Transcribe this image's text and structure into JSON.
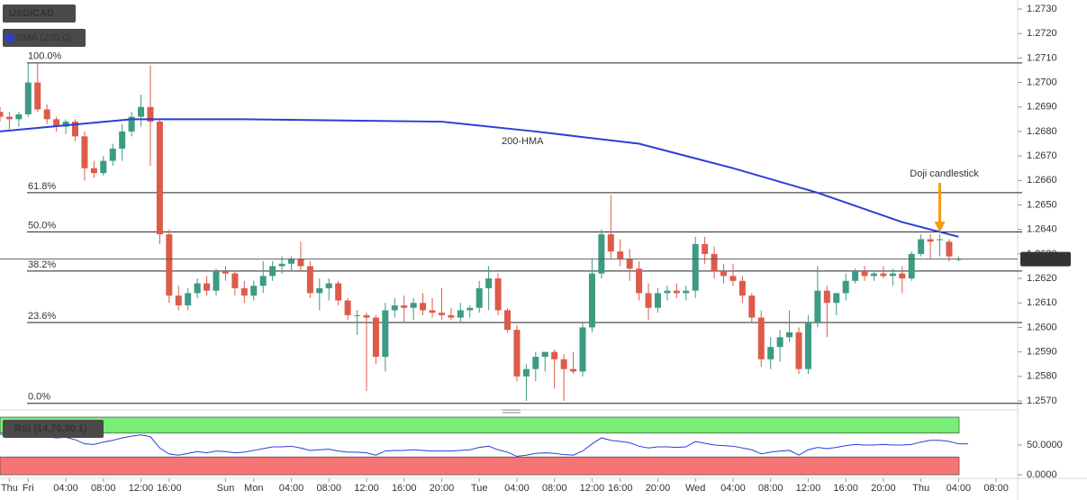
{
  "chart_data": {
    "type": "candlestick",
    "symbol": "USD/CAD",
    "indicator_label": "SMA (200,0)",
    "rsi_label": "RSI (14,70,30,1)",
    "up_color": "#3d9a83",
    "down_color": "#dd5b4a",
    "ylim": [
      1.257,
      1.273
    ],
    "yticks": [
      {
        "value": 1.257,
        "label": "1.2570"
      },
      {
        "value": 1.258,
        "label": "1.2580"
      },
      {
        "value": 1.259,
        "label": "1.2590"
      },
      {
        "value": 1.26,
        "label": "1.2600"
      },
      {
        "value": 1.261,
        "label": "1.2610"
      },
      {
        "value": 1.262,
        "label": "1.2620"
      },
      {
        "value": 1.263,
        "label": "1.2630"
      },
      {
        "value": 1.264,
        "label": "1.2640"
      },
      {
        "value": 1.265,
        "label": "1.2650"
      },
      {
        "value": 1.266,
        "label": "1.2660"
      },
      {
        "value": 1.267,
        "label": "1.2670"
      },
      {
        "value": 1.268,
        "label": "1.2680"
      },
      {
        "value": 1.269,
        "label": "1.2690"
      },
      {
        "value": 1.27,
        "label": "1.2700"
      },
      {
        "value": 1.271,
        "label": "1.2710"
      },
      {
        "value": 1.272,
        "label": "1.2720"
      },
      {
        "value": 1.273,
        "label": "1.2730"
      }
    ],
    "xlim": [
      0,
      108
    ],
    "xticks": [
      {
        "value": 1,
        "label": "Thu"
      },
      {
        "value": 3,
        "label": "Fri"
      },
      {
        "value": 7,
        "label": "04:00"
      },
      {
        "value": 11,
        "label": "08:00"
      },
      {
        "value": 15,
        "label": "12:00"
      },
      {
        "value": 18,
        "label": "16:00"
      },
      {
        "value": 24,
        "label": "Sun"
      },
      {
        "value": 27,
        "label": "Mon"
      },
      {
        "value": 31,
        "label": "04:00"
      },
      {
        "value": 35,
        "label": "08:00"
      },
      {
        "value": 39,
        "label": "12:00"
      },
      {
        "value": 43,
        "label": "16:00"
      },
      {
        "value": 47,
        "label": "20:00"
      },
      {
        "value": 51,
        "label": "Tue"
      },
      {
        "value": 55,
        "label": "04:00"
      },
      {
        "value": 59,
        "label": "08:00"
      },
      {
        "value": 63,
        "label": "12:00"
      },
      {
        "value": 66,
        "label": "16:00"
      },
      {
        "value": 70,
        "label": "20:00"
      },
      {
        "value": 74,
        "label": "Wed"
      },
      {
        "value": 78,
        "label": "04:00"
      },
      {
        "value": 82,
        "label": "08:00"
      },
      {
        "value": 86,
        "label": "12:00"
      },
      {
        "value": 90,
        "label": "16:00"
      },
      {
        "value": 94,
        "label": "20:00"
      },
      {
        "value": 98,
        "label": "Thu"
      },
      {
        "value": 102,
        "label": "04:00"
      },
      {
        "value": 106,
        "label": "08:00"
      }
    ],
    "candles": [
      [
        1.2688,
        1.269,
        1.2684,
        1.2686
      ],
      [
        1.2686,
        1.2688,
        1.2681,
        1.2685
      ],
      [
        1.2685,
        1.2688,
        1.2682,
        1.2687
      ],
      [
        1.2687,
        1.2708,
        1.2686,
        1.27
      ],
      [
        1.27,
        1.2708,
        1.2688,
        1.2689
      ],
      [
        1.2689,
        1.2691,
        1.2683,
        1.2685
      ],
      [
        1.2685,
        1.2686,
        1.268,
        1.2682
      ],
      [
        1.2682,
        1.2685,
        1.2679,
        1.2684
      ],
      [
        1.2684,
        1.2685,
        1.2676,
        1.2678
      ],
      [
        1.2678,
        1.268,
        1.266,
        1.2665
      ],
      [
        1.2665,
        1.2668,
        1.2661,
        1.2663
      ],
      [
        1.2663,
        1.267,
        1.2662,
        1.2668
      ],
      [
        1.2668,
        1.2675,
        1.2666,
        1.2673
      ],
      [
        1.2673,
        1.2683,
        1.2668,
        1.268
      ],
      [
        1.268,
        1.2688,
        1.2678,
        1.2686
      ],
      [
        1.2686,
        1.2695,
        1.2682,
        1.269
      ],
      [
        1.269,
        1.2707,
        1.2666,
        1.2684
      ],
      [
        1.2684,
        1.2685,
        1.2634,
        1.2638
      ],
      [
        1.2638,
        1.264,
        1.261,
        1.2613
      ],
      [
        1.2613,
        1.2617,
        1.2607,
        1.2609
      ],
      [
        1.2609,
        1.2616,
        1.2607,
        1.2614
      ],
      [
        1.2614,
        1.262,
        1.2612,
        1.2618
      ],
      [
        1.2618,
        1.2621,
        1.2613,
        1.2615
      ],
      [
        1.2615,
        1.2624,
        1.2613,
        1.2623
      ],
      [
        1.2623,
        1.2625,
        1.2619,
        1.2622
      ],
      [
        1.2622,
        1.2623,
        1.2613,
        1.2616
      ],
      [
        1.2616,
        1.2619,
        1.261,
        1.2613
      ],
      [
        1.2613,
        1.2619,
        1.2611,
        1.2617
      ],
      [
        1.2617,
        1.2627,
        1.2614,
        1.2621
      ],
      [
        1.2621,
        1.2627,
        1.2619,
        1.2625
      ],
      [
        1.2625,
        1.2629,
        1.2622,
        1.2626
      ],
      [
        1.2626,
        1.2629,
        1.2623,
        1.2628
      ],
      [
        1.2628,
        1.2635,
        1.2623,
        1.2625
      ],
      [
        1.2625,
        1.2627,
        1.2612,
        1.2614
      ],
      [
        1.2614,
        1.262,
        1.2607,
        1.2616
      ],
      [
        1.2616,
        1.262,
        1.2611,
        1.2618
      ],
      [
        1.2618,
        1.2619,
        1.2609,
        1.2611
      ],
      [
        1.2611,
        1.2612,
        1.2603,
        1.2605
      ],
      [
        1.2605,
        1.2607,
        1.2597,
        1.2605
      ],
      [
        1.2605,
        1.2606,
        1.2574,
        1.2604
      ],
      [
        1.2604,
        1.2605,
        1.2585,
        1.2588
      ],
      [
        1.2588,
        1.261,
        1.2582,
        1.2607
      ],
      [
        1.2607,
        1.2612,
        1.2604,
        1.2609
      ],
      [
        1.2609,
        1.2613,
        1.2602,
        1.2608
      ],
      [
        1.2608,
        1.2612,
        1.2603,
        1.261
      ],
      [
        1.261,
        1.2614,
        1.2605,
        1.2607
      ],
      [
        1.2607,
        1.2612,
        1.2604,
        1.2606
      ],
      [
        1.2606,
        1.2616,
        1.2603,
        1.2605
      ],
      [
        1.2605,
        1.2608,
        1.2603,
        1.2604
      ],
      [
        1.2604,
        1.261,
        1.2602,
        1.2607
      ],
      [
        1.2607,
        1.2609,
        1.2604,
        1.2608
      ],
      [
        1.2608,
        1.2619,
        1.2606,
        1.2616
      ],
      [
        1.2616,
        1.2625,
        1.2607,
        1.262
      ],
      [
        1.262,
        1.2622,
        1.2605,
        1.2607
      ],
      [
        1.2607,
        1.2608,
        1.2598,
        1.2599
      ],
      [
        1.2599,
        1.2601,
        1.2578,
        1.258
      ],
      [
        1.258,
        1.2585,
        1.257,
        1.2583
      ],
      [
        1.2583,
        1.259,
        1.2578,
        1.2588
      ],
      [
        1.2588,
        1.259,
        1.2582,
        1.259
      ],
      [
        1.259,
        1.2591,
        1.2575,
        1.2587
      ],
      [
        1.2587,
        1.2589,
        1.257,
        1.2583
      ],
      [
        1.2583,
        1.259,
        1.2581,
        1.2582
      ],
      [
        1.2582,
        1.2602,
        1.258,
        1.26
      ],
      [
        1.26,
        1.2628,
        1.2598,
        1.2622
      ],
      [
        1.2622,
        1.264,
        1.262,
        1.2638
      ],
      [
        1.2638,
        1.2654,
        1.2628,
        1.2631
      ],
      [
        1.2631,
        1.2636,
        1.2625,
        1.2628
      ],
      [
        1.2628,
        1.2632,
        1.2619,
        1.2624
      ],
      [
        1.2624,
        1.2627,
        1.2611,
        1.2614
      ],
      [
        1.2614,
        1.2618,
        1.2603,
        1.2608
      ],
      [
        1.2608,
        1.2616,
        1.2606,
        1.2614
      ],
      [
        1.2614,
        1.2617,
        1.2611,
        1.2615
      ],
      [
        1.2615,
        1.2618,
        1.2612,
        1.2614
      ],
      [
        1.2614,
        1.2617,
        1.2611,
        1.2615
      ],
      [
        1.2615,
        1.2637,
        1.2612,
        1.2634
      ],
      [
        1.2634,
        1.2637,
        1.2626,
        1.263
      ],
      [
        1.263,
        1.2633,
        1.262,
        1.2623
      ],
      [
        1.2623,
        1.2626,
        1.2618,
        1.2621
      ],
      [
        1.2621,
        1.2626,
        1.2617,
        1.2619
      ],
      [
        1.2619,
        1.2621,
        1.261,
        1.2613
      ],
      [
        1.2613,
        1.2614,
        1.2602,
        1.2604
      ],
      [
        1.2604,
        1.2607,
        1.2584,
        1.2587
      ],
      [
        1.2587,
        1.2596,
        1.2583,
        1.2592
      ],
      [
        1.2592,
        1.2599,
        1.2586,
        1.2596
      ],
      [
        1.2596,
        1.2607,
        1.2594,
        1.2598
      ],
      [
        1.2598,
        1.26,
        1.2581,
        1.2583
      ],
      [
        1.2583,
        1.2605,
        1.2581,
        1.2602
      ],
      [
        1.2602,
        1.2625,
        1.26,
        1.2615
      ],
      [
        1.2615,
        1.2617,
        1.2596,
        1.261
      ],
      [
        1.261,
        1.2614,
        1.2605,
        1.2614
      ],
      [
        1.2614,
        1.2622,
        1.2611,
        1.2619
      ],
      [
        1.2619,
        1.2624,
        1.2618,
        1.2623
      ],
      [
        1.2623,
        1.2625,
        1.2619,
        1.2621
      ],
      [
        1.2621,
        1.2623,
        1.2619,
        1.2622
      ],
      [
        1.2622,
        1.2625,
        1.262,
        1.2621
      ],
      [
        1.2621,
        1.2624,
        1.2617,
        1.2622
      ],
      [
        1.2622,
        1.2625,
        1.2614,
        1.262
      ],
      [
        1.262,
        1.2631,
        1.2619,
        1.263
      ],
      [
        1.263,
        1.2638,
        1.2629,
        1.2636
      ],
      [
        1.2636,
        1.2638,
        1.2628,
        1.2635
      ],
      [
        1.2636,
        1.2638,
        1.2629,
        1.2636
      ],
      [
        1.2635,
        1.2636,
        1.2627,
        1.2629
      ],
      [
        1.2628,
        1.2629,
        1.2627,
        1.2628
      ]
    ],
    "hma": {
      "name": "200-HMA",
      "color": "#2a3fd6",
      "x": [
        0,
        14,
        26,
        47,
        57,
        68,
        78,
        87,
        96,
        102
      ],
      "values": [
        1.268,
        1.2685,
        1.2685,
        1.2684,
        1.268,
        1.2675,
        1.2665,
        1.2655,
        1.2643,
        1.2637
      ]
    },
    "fib_levels": [
      {
        "label": "100.0%",
        "value": 1.2708
      },
      {
        "label": "61.8%",
        "value": 1.2655
      },
      {
        "label": "50.0%",
        "value": 1.2639
      },
      {
        "label": "38.2%",
        "value": 1.2623
      },
      {
        "label": "23.6%",
        "value": 1.2602
      },
      {
        "label": "0.0%",
        "value": 1.2569
      }
    ],
    "last_price": 1.26279,
    "annotation": {
      "text": "Doji candlestick",
      "x": 100,
      "color": "#f59a10"
    },
    "rsi": {
      "color": "#2a3fd6",
      "ylim": [
        0,
        100
      ],
      "overbought": 70,
      "oversold": 30,
      "yticks": [
        {
          "value": 0,
          "label": "0.0000"
        },
        {
          "value": 50,
          "label": "50.0000"
        }
      ],
      "values": [
        68,
        68,
        67,
        72,
        66,
        64,
        62,
        63,
        59,
        52,
        51,
        55,
        58,
        62,
        65,
        67,
        64,
        45,
        35,
        33,
        36,
        39,
        37,
        40,
        39,
        37,
        38,
        41,
        44,
        47,
        47,
        48,
        45,
        41,
        42,
        43,
        40,
        38,
        38,
        37,
        33,
        40,
        41,
        41,
        42,
        41,
        40,
        40,
        40,
        41,
        42,
        46,
        48,
        42,
        38,
        31,
        33,
        36,
        37,
        36,
        34,
        33,
        40,
        52,
        62,
        58,
        56,
        54,
        48,
        45,
        47,
        47,
        46,
        47,
        56,
        53,
        50,
        49,
        48,
        45,
        42,
        35,
        38,
        40,
        41,
        33,
        42,
        46,
        44,
        46,
        49,
        51,
        50,
        50,
        51,
        50,
        50,
        51,
        55,
        58,
        58,
        56,
        52,
        52
      ]
    }
  }
}
